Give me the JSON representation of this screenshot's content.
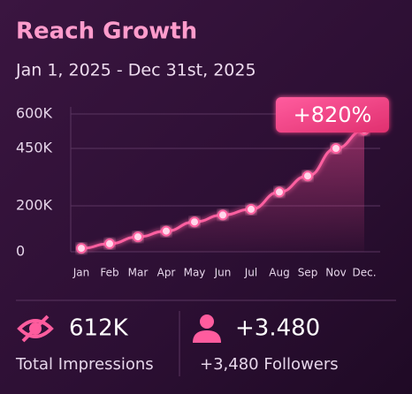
{
  "chart_data": {
    "type": "line",
    "title": "Reach Growth",
    "subtitle": "Jan 1, 2025 - Dec 31st, 2025",
    "annotation": "+820%",
    "categories": [
      "Jan",
      "Feb",
      "Mar",
      "Apr",
      "May",
      "Jun",
      "Jul",
      "Aug",
      "Sep",
      "Nov",
      "Dec."
    ],
    "series": [
      {
        "name": "Reach",
        "color": "#ff5fa0",
        "values": [
          15000,
          35000,
          65000,
          90000,
          130000,
          160000,
          185000,
          260000,
          330000,
          450000,
          530000
        ]
      }
    ],
    "ylim": [
      0,
      600000
    ],
    "yticks": [
      {
        "value": 0,
        "label": "0"
      },
      {
        "value": 200000,
        "label": "200K"
      },
      {
        "value": 450000,
        "label": "450K"
      },
      {
        "value": 600000,
        "label": "600K"
      }
    ],
    "grid": true
  },
  "stats": [
    {
      "value": "612K",
      "label": "Total Impressions"
    },
    {
      "value": "+3.480",
      "label": "+3,480 Followers"
    }
  ]
}
